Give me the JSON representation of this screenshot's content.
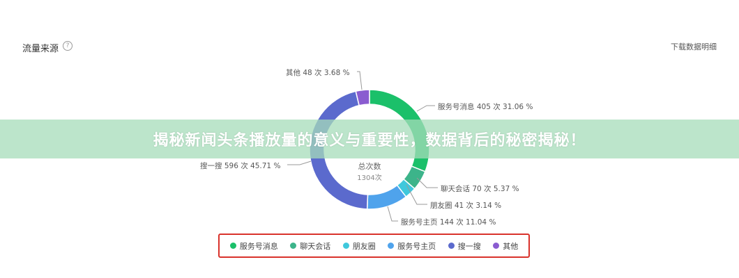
{
  "header": {
    "title": "流量来源",
    "help_icon": "question-circle-icon",
    "help_glyph": "?",
    "download_label": "下载数据明细"
  },
  "banner": {
    "text": "揭秘新闻头条播放量的意义与重要性，数据背后的秘密揭秘！"
  },
  "chart_data": {
    "type": "pie",
    "donut": true,
    "center_label": "总次数",
    "center_value": "1304次",
    "categories": [
      "服务号消息",
      "聊天会话",
      "朋友圈",
      "服务号主页",
      "搜一搜",
      "其他"
    ],
    "values": [
      405,
      70,
      41,
      144,
      596,
      48
    ],
    "percents": [
      31.06,
      5.37,
      3.14,
      11.04,
      45.71,
      3.68
    ],
    "colors": [
      "#1bc06a",
      "#3cb48a",
      "#3fc8dc",
      "#4fa3ec",
      "#5b6acd",
      "#8a5cd0"
    ],
    "data_labels": [
      "服务号消息 405 次 31.06 %",
      "聊天会话 70 次 5.37 %",
      "朋友圈 41 次 3.14 %",
      "服务号主页 144 次 11.04 %",
      "搜一搜 596 次 45.71 %",
      "其他 48 次 3.68 %"
    ],
    "legend": "bottom"
  }
}
